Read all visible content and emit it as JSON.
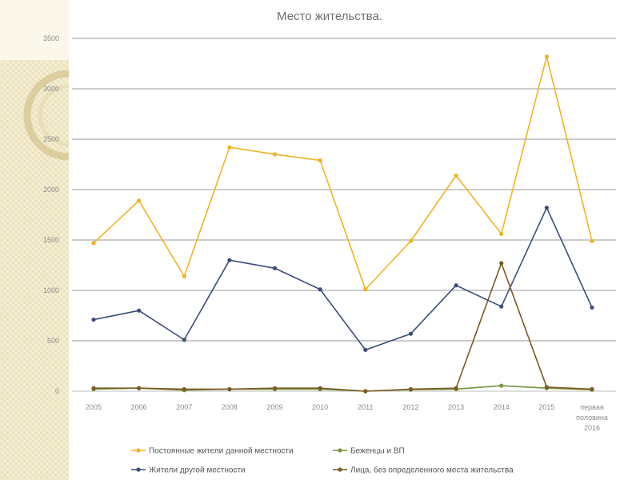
{
  "chart_data": {
    "type": "line",
    "title": "Место жительства.",
    "xlabel": "",
    "ylabel": "",
    "ylim": [
      0,
      3500
    ],
    "yticks": [
      0,
      500,
      1000,
      1500,
      2000,
      2500,
      3000,
      3500
    ],
    "categories": [
      "2005",
      "2006",
      "2007",
      "2008",
      "2009",
      "2010",
      "2011",
      "2012",
      "2013",
      "2014",
      "2015",
      "первая половина 2016"
    ],
    "category_lines": [
      [
        "2005"
      ],
      [
        "2006"
      ],
      [
        "2007"
      ],
      [
        "2008"
      ],
      [
        "2009"
      ],
      [
        "2010"
      ],
      [
        "2011"
      ],
      [
        "2012"
      ],
      [
        "2013"
      ],
      [
        "2014"
      ],
      [
        "2015"
      ],
      [
        "первая",
        "половина",
        "2016"
      ]
    ],
    "grid": true,
    "legend_position": "bottom",
    "series": [
      {
        "name": "Постоянные жители данной местности",
        "color": "#f0b323",
        "values": [
          1470,
          1890,
          1140,
          2420,
          2350,
          2290,
          1010,
          1490,
          2140,
          1560,
          3320,
          1490
        ]
      },
      {
        "name": "Беженцы и ВП",
        "color": "#77933c",
        "values": [
          20,
          30,
          10,
          20,
          20,
          20,
          0,
          15,
          20,
          55,
          30,
          15
        ]
      },
      {
        "name": "Жители другой местности",
        "color": "#3c4d7a",
        "values": [
          710,
          800,
          510,
          1300,
          1220,
          1010,
          410,
          570,
          1050,
          840,
          1820,
          830
        ]
      },
      {
        "name": "Лица, без определенного места жительства",
        "color": "#7b5a23",
        "values": [
          30,
          30,
          20,
          20,
          30,
          30,
          0,
          20,
          30,
          1270,
          40,
          20
        ]
      }
    ]
  }
}
